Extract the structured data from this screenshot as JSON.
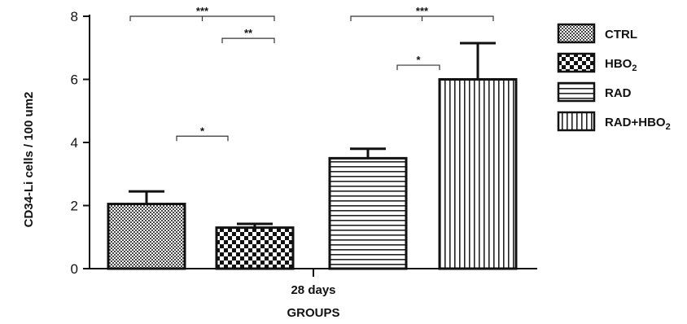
{
  "chart_data": {
    "type": "bar",
    "ylabel": "CD34-Li cells / 100 um2",
    "xlabel": "GROUPS",
    "category_label": "28 days",
    "ylim": [
      0,
      8
    ],
    "yticks": [
      "0",
      "2",
      "4",
      "6",
      "8"
    ],
    "grid": false,
    "legend_position": "right",
    "series": [
      {
        "name": "CTRL",
        "subscript": "",
        "value": 2.05,
        "error": 0.4,
        "pattern": "dots"
      },
      {
        "name": "HBO",
        "subscript": "2",
        "value": 1.3,
        "error": 0.12,
        "pattern": "checker"
      },
      {
        "name": "RAD",
        "subscript": "",
        "value": 3.5,
        "error": 0.3,
        "pattern": "hstripes"
      },
      {
        "name": "RAD+HBO",
        "subscript": "2",
        "value": 6.0,
        "error": 1.15,
        "pattern": "vstripes"
      }
    ],
    "significance": [
      {
        "from": 0,
        "to": 2,
        "level": 8.0,
        "label": "***"
      },
      {
        "from": 1,
        "to": 2,
        "level": 7.3,
        "label": "**"
      },
      {
        "from": 0,
        "to": 1,
        "level": 4.2,
        "label": "*"
      },
      {
        "from": 2,
        "to": 3,
        "level": 8.0,
        "label": "***"
      },
      {
        "from": 2,
        "to": 3,
        "level": 6.45,
        "label": "*",
        "short": true
      }
    ]
  }
}
